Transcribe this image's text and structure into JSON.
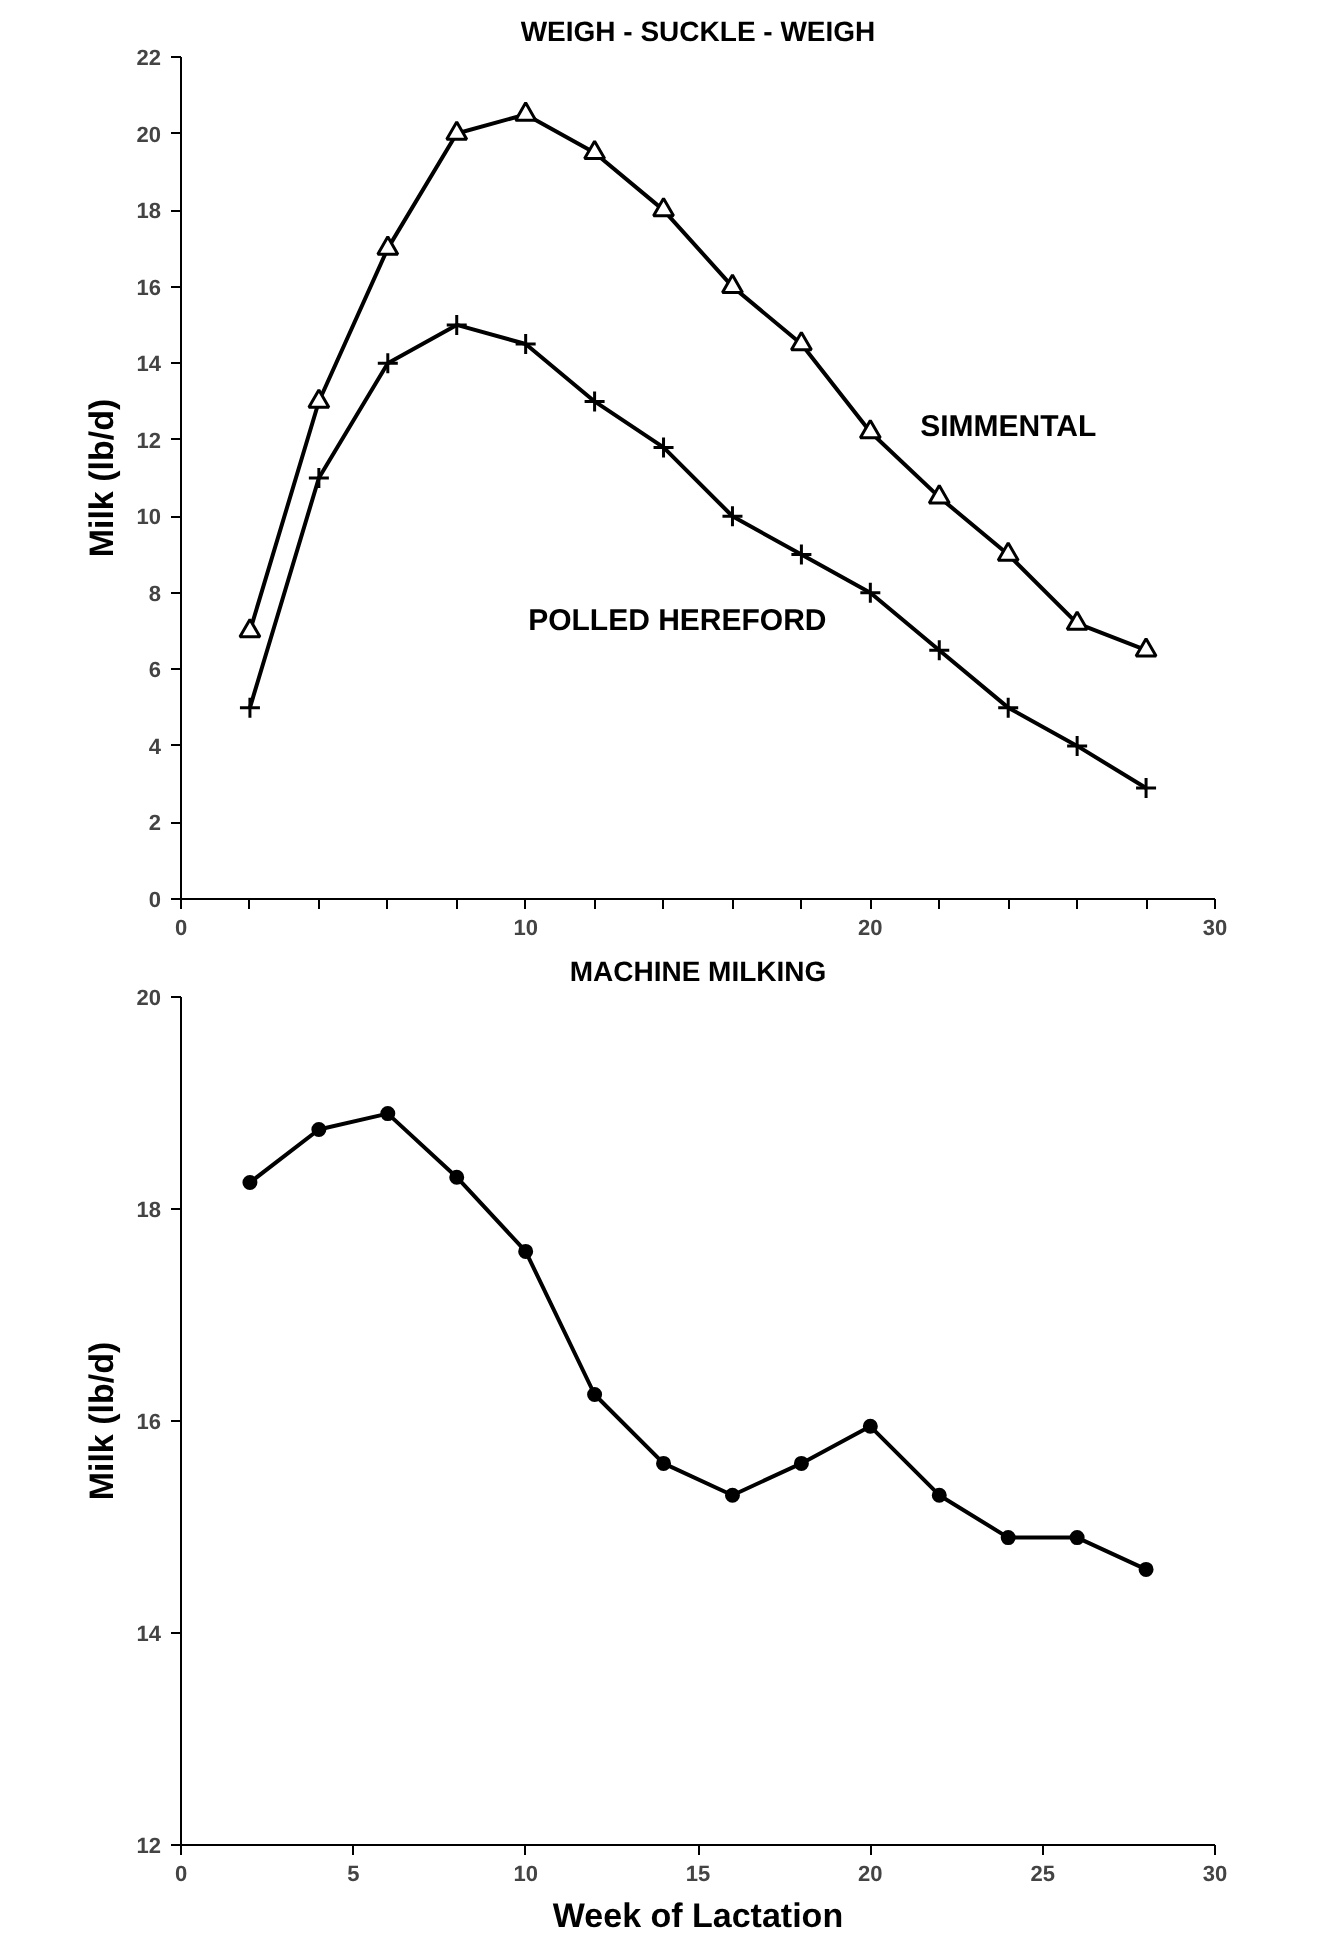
{
  "chart_data": [
    {
      "type": "line",
      "title": "WEIGH - SUCKLE - WEIGH",
      "ylabel": "Milk (lb/d)",
      "x": [
        2,
        4,
        6,
        8,
        10,
        12,
        14,
        16,
        18,
        20,
        22,
        24,
        26,
        28
      ],
      "series": [
        {
          "name": "SIMMENTAL",
          "color": "#000000",
          "marker": "triangle",
          "values": [
            7,
            13,
            17,
            20,
            20.5,
            19.5,
            18,
            16,
            14.5,
            12.2,
            10.5,
            9,
            7.2,
            6.5
          ]
        },
        {
          "name": "POLLED HEREFORD",
          "color": "#000000",
          "marker": "cross",
          "values": [
            5,
            11,
            14,
            15,
            14.5,
            13,
            11.8,
            10,
            9,
            8,
            6.5,
            5,
            4,
            2.9
          ]
        }
      ],
      "xlim": [
        0,
        30
      ],
      "xticks": [
        0,
        {
          "value": 2,
          "label": null
        },
        {
          "value": 4,
          "label": null
        },
        {
          "value": 6,
          "label": null
        },
        {
          "value": 8,
          "label": null
        },
        10,
        {
          "value": 12,
          "label": null
        },
        {
          "value": 14,
          "label": null
        },
        {
          "value": 16,
          "label": null
        },
        {
          "value": 18,
          "label": null
        },
        20,
        {
          "value": 22,
          "label": null
        },
        {
          "value": 24,
          "label": null
        },
        {
          "value": 26,
          "label": null
        },
        {
          "value": 28,
          "label": null
        },
        30
      ],
      "ylim": [
        0,
        22
      ],
      "yticks": [
        0,
        2,
        4,
        6,
        8,
        10,
        12,
        14,
        16,
        18,
        20,
        22
      ],
      "line_style": "solid"
    },
    {
      "type": "line",
      "title": "MACHINE MILKING",
      "xlabel": "Week of Lactation",
      "ylabel": "Milk (lb/d)",
      "x": [
        2,
        4,
        6,
        8,
        10,
        12,
        14,
        16,
        18,
        20,
        22,
        24,
        26,
        28
      ],
      "series": [
        {
          "color": "#000000",
          "marker": "circle",
          "values": [
            18.25,
            18.75,
            18.9,
            18.3,
            17.6,
            16.25,
            15.6,
            15.3,
            15.6,
            15.95,
            15.3,
            14.9,
            14.9,
            14.6
          ]
        }
      ],
      "xlim": [
        0,
        30
      ],
      "xticks": [
        0,
        5,
        10,
        15,
        20,
        25,
        30
      ],
      "ylim": [
        12,
        20
      ],
      "yticks": [
        12,
        14,
        16,
        18,
        20
      ],
      "line_style": "solid"
    }
  ]
}
